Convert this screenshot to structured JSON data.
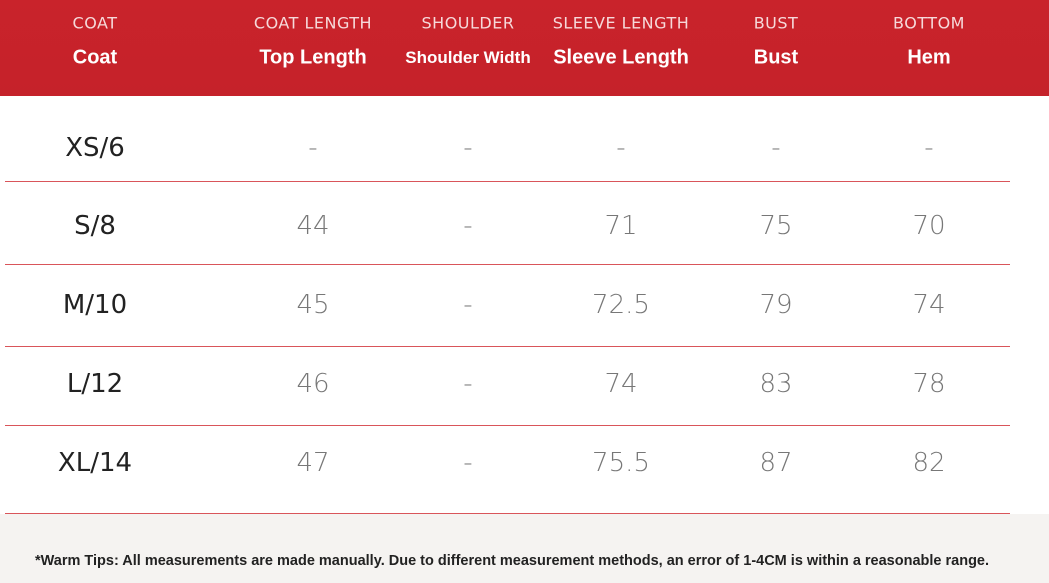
{
  "header": {
    "columns": [
      {
        "top": "COAT",
        "sub": "Coat"
      },
      {
        "top": "COAT LENGTH",
        "sub": "Top Length"
      },
      {
        "top": "SHOULDER",
        "sub": "Shoulder Width"
      },
      {
        "top": "SLEEVE LENGTH",
        "sub": "Sleeve Length"
      },
      {
        "top": "BUST",
        "sub": "Bust"
      },
      {
        "top": "BOTTOM",
        "sub": "Hem"
      }
    ]
  },
  "table": {
    "rows": [
      [
        "XS/6",
        "-",
        "-",
        "-",
        "-",
        "-"
      ],
      [
        "S/8",
        44,
        "-",
        71,
        75,
        70
      ],
      [
        "M/10",
        45,
        "-",
        72.5,
        79,
        74
      ],
      [
        "L/12",
        46,
        "-",
        74,
        83,
        78
      ],
      [
        "XL/14",
        47,
        "-",
        75.5,
        87,
        82
      ]
    ]
  },
  "footer": {
    "tip": "*Warm Tips: All measurements are made manually. Due to different measurement methods, an error of 1-4CM is within a reasonable range."
  }
}
